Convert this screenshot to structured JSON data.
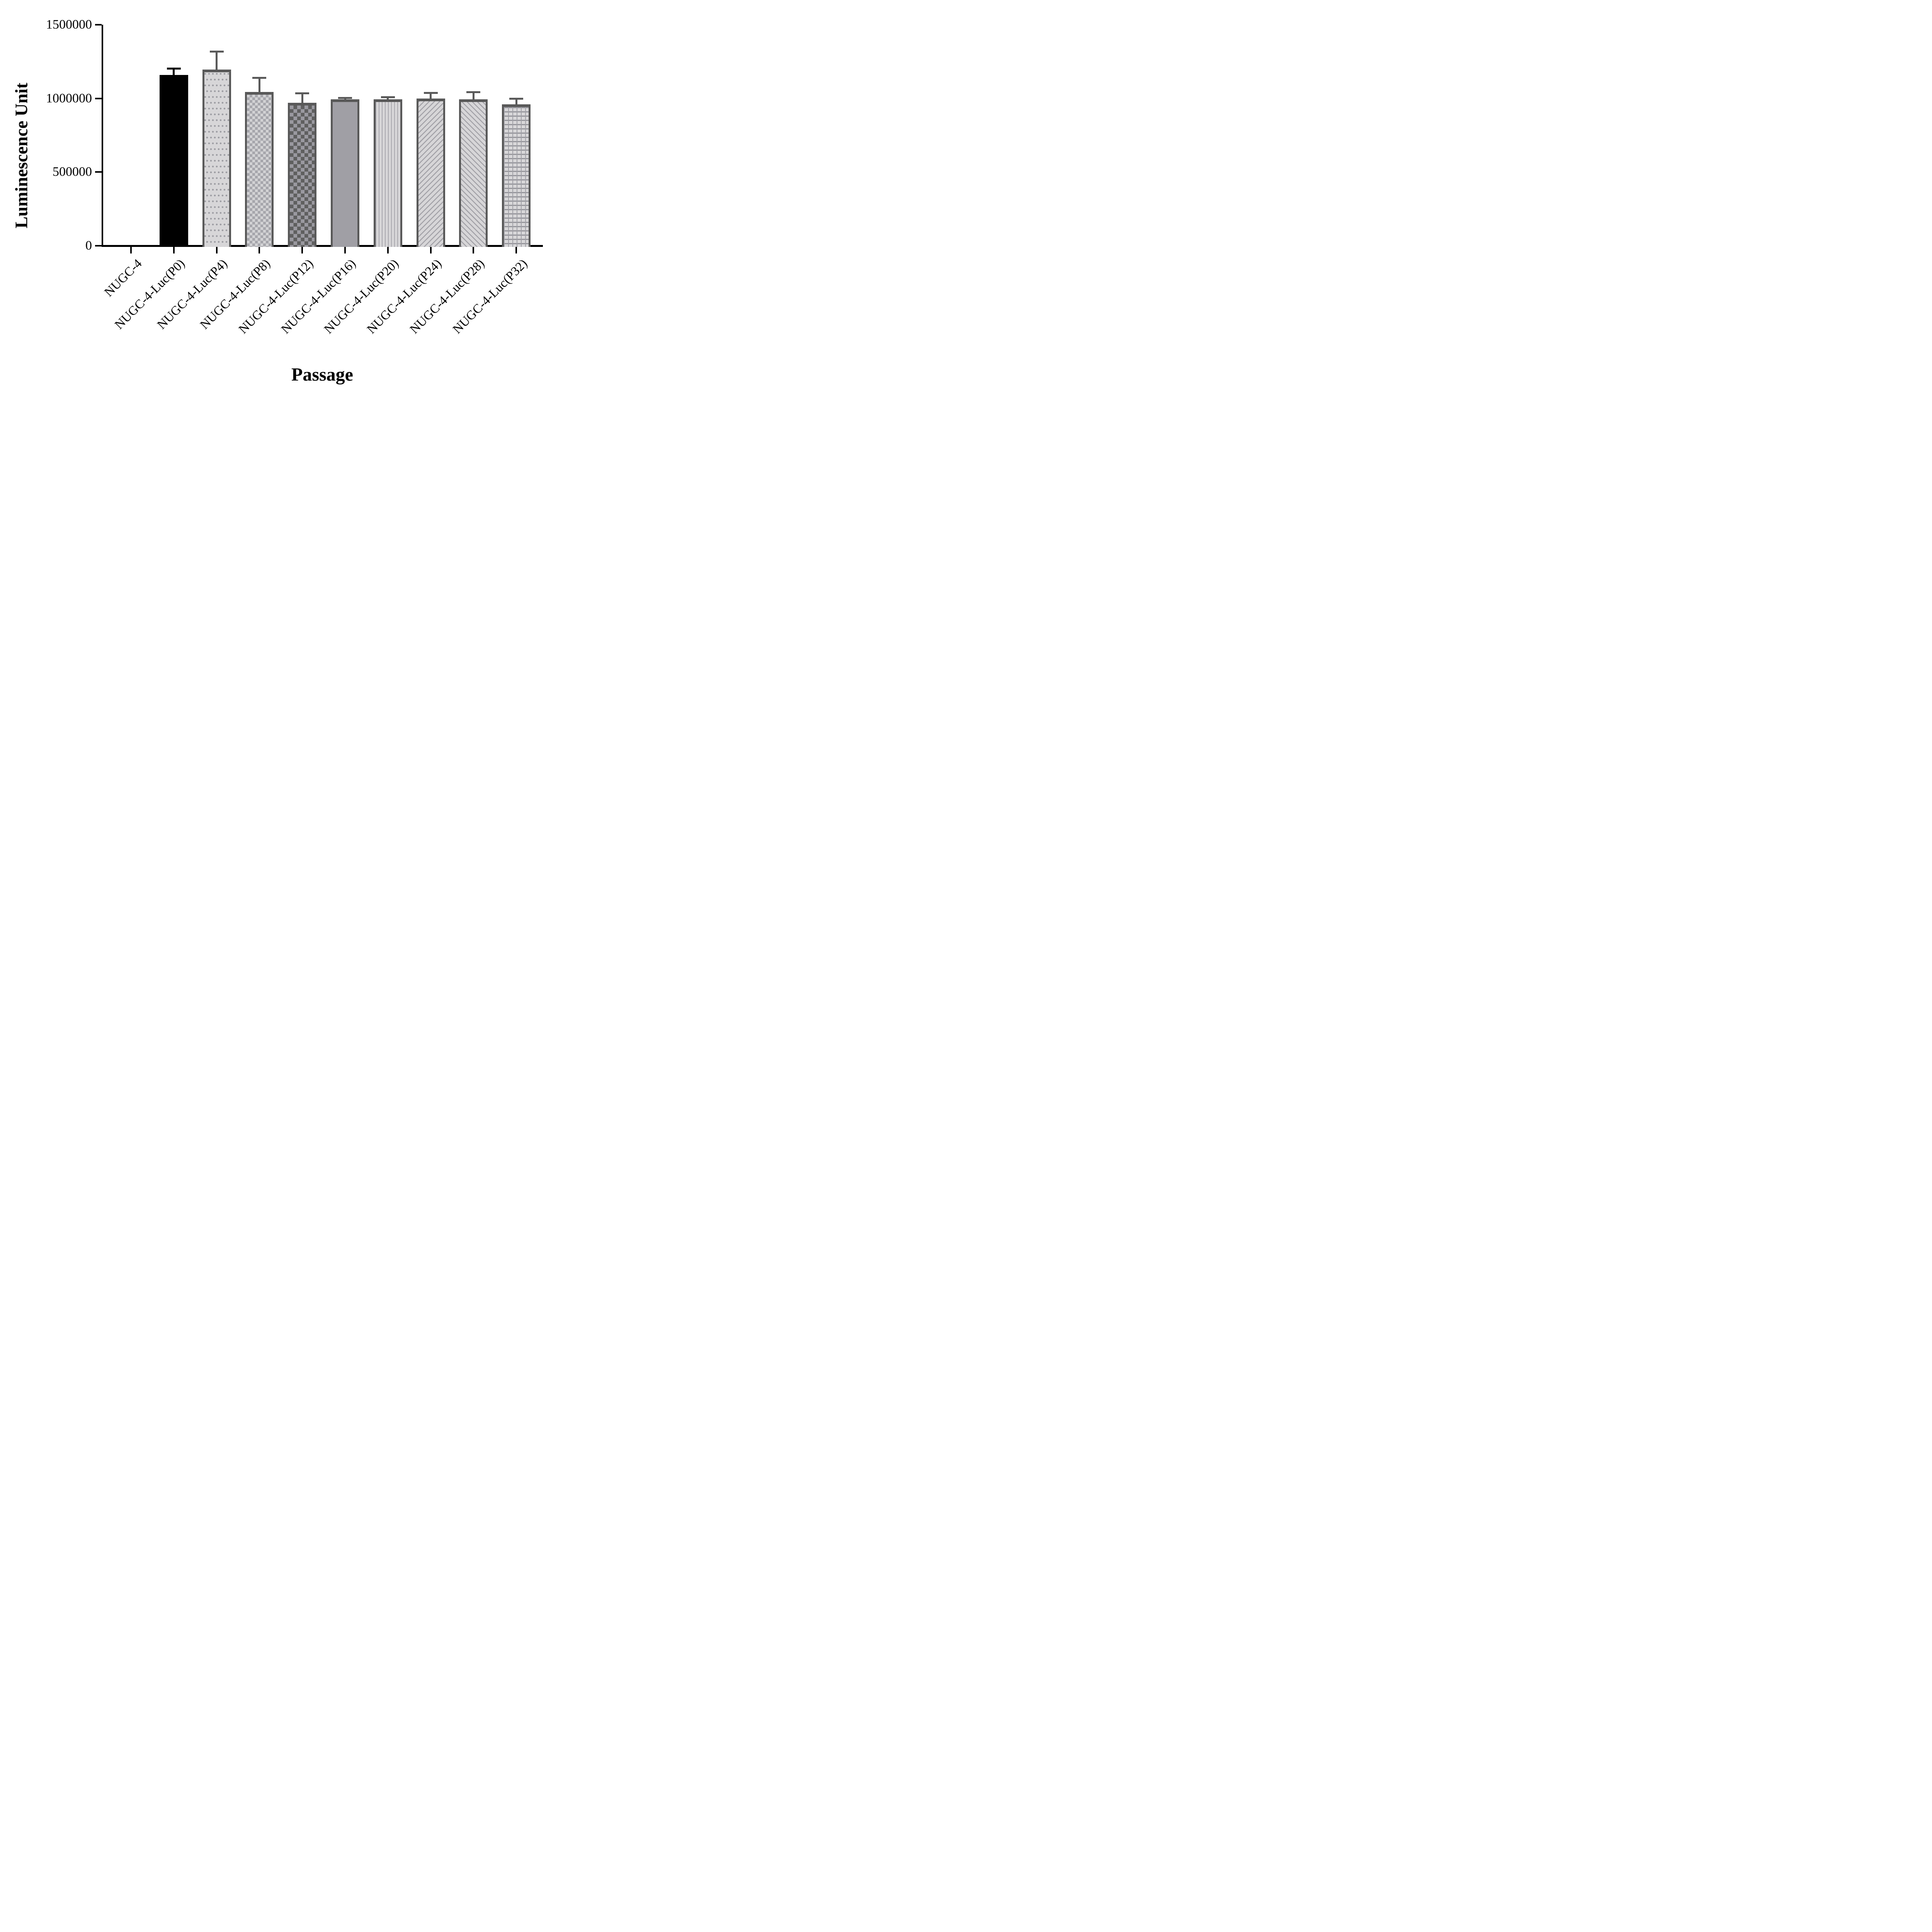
{
  "chart_data": {
    "type": "bar",
    "title": "",
    "xlabel": "Passage",
    "ylabel": "Luminescence Unit",
    "ylim": [
      0,
      1500000
    ],
    "yticks": [
      0,
      500000,
      1000000,
      1500000
    ],
    "ytick_labels": [
      "0",
      "500000",
      "1000000",
      "1500000"
    ],
    "grid": "off",
    "legend": "none",
    "error_bars": "upper SD whiskers with caps",
    "categories": [
      "NUGC-4",
      "NUGC-4-Luc(P0)",
      "NUGC-4-Luc(P4)",
      "NUGC-4-Luc(P8)",
      "NUGC-4-Luc(P12)",
      "NUGC-4-Luc(P16)",
      "NUGC-4-Luc(P20)",
      "NUGC-4-Luc(P24)",
      "NUGC-4-Luc(P28)",
      "NUGC-4-Luc(P32)"
    ],
    "values": [
      0,
      1160000,
      1195000,
      1045000,
      970000,
      995000,
      995000,
      1000000,
      995000,
      960000
    ],
    "errors_plus": [
      0,
      50000,
      130000,
      100000,
      70000,
      15000,
      20000,
      45000,
      55000,
      45000
    ],
    "bar_patterns": [
      "none",
      "solid-black",
      "dots",
      "checker-small",
      "checker-dark",
      "solid-gray",
      "vertical-stripes",
      "diagonal-up",
      "diagonal-down",
      "grid"
    ],
    "error_bar_colors": [
      "none",
      "#000000",
      "#595959",
      "#595959",
      "#595959",
      "#595959",
      "#595959",
      "#595959",
      "#595959",
      "#595959"
    ]
  },
  "colors": {
    "axis": "#000000",
    "bar_border_dark_gray": "#595959",
    "solid_black_bar": "#000000",
    "solid_gray_bar": "#a09fa5",
    "pattern_background_light": "#d7d6d8",
    "pattern_stroke_gray": "#a2a1a7",
    "checker_dark_a": "#5f5f5f",
    "checker_dark_b": "#9a99a0",
    "text": "#000000",
    "background": "#ffffff"
  }
}
